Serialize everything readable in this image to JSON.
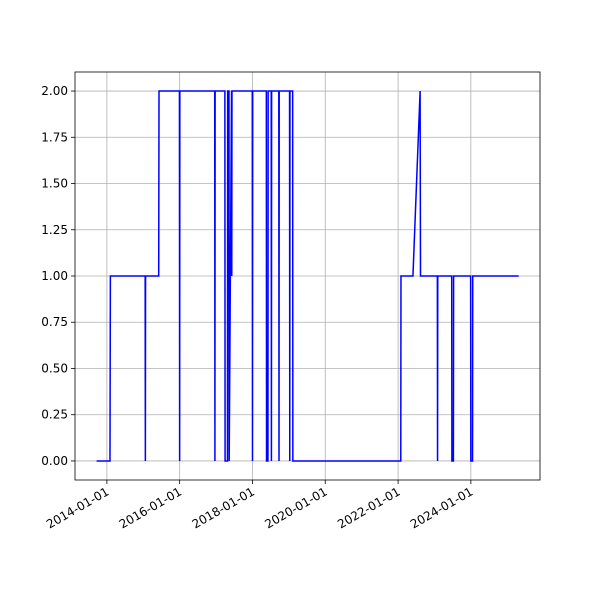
{
  "chart_data": {
    "type": "line",
    "color": "#0000ff",
    "grid": true,
    "x": [
      "2013-09-20",
      "2014-02-01",
      "2014-02-05",
      "2015-01-20",
      "2015-01-22",
      "2015-01-24",
      "2015-06-05",
      "2015-06-08",
      "2015-12-30",
      "2016-01-01",
      "2016-01-03",
      "2016-12-18",
      "2016-12-20",
      "2016-12-22",
      "2017-03-30",
      "2017-04-01",
      "2017-04-25",
      "2017-04-27",
      "2017-05-10",
      "2017-05-12",
      "2017-06-05",
      "2017-06-07",
      "2017-06-09",
      "2017-12-30",
      "2018-01-01",
      "2018-01-03",
      "2018-05-20",
      "2018-05-22",
      "2018-06-05",
      "2018-06-07",
      "2018-07-08",
      "2018-07-10",
      "2018-07-12",
      "2018-09-22",
      "2018-09-24",
      "2018-09-26",
      "2019-01-08",
      "2019-01-10",
      "2019-01-12",
      "2019-02-08",
      "2019-02-10",
      "2022-01-28",
      "2022-01-30",
      "2022-05-30",
      "2022-08-10",
      "2022-08-14",
      "2023-01-30",
      "2023-02-01",
      "2023-02-03",
      "2023-06-23",
      "2023-06-25",
      "2023-07-10",
      "2023-07-12",
      "2023-12-30",
      "2024-01-01",
      "2024-01-18",
      "2024-01-20",
      "2025-04-25"
    ],
    "values": [
      0,
      0,
      1,
      1,
      0,
      1,
      1,
      2,
      2,
      0,
      2,
      2,
      0,
      2,
      2,
      0,
      0,
      2,
      2,
      0,
      2,
      1,
      2,
      2,
      0,
      2,
      2,
      0,
      0,
      2,
      2,
      0,
      2,
      2,
      0,
      2,
      2,
      0,
      2,
      2,
      0,
      0,
      1,
      1,
      2,
      1,
      1,
      0,
      1,
      1,
      0,
      0,
      1,
      1,
      0,
      0,
      1,
      1
    ],
    "xlim": [
      "2013-02-15",
      "2025-11-25"
    ],
    "xticks": [
      "2014-01-01",
      "2016-01-01",
      "2018-01-01",
      "2020-01-01",
      "2022-01-01",
      "2024-01-01"
    ],
    "ylim": [
      -0.103,
      2.103
    ],
    "yticks": [
      {
        "value": 0,
        "label": "0.00"
      },
      {
        "value": 0.25,
        "label": "0.25"
      },
      {
        "value": 0.5,
        "label": "0.50"
      },
      {
        "value": 0.75,
        "label": "0.75"
      },
      {
        "value": 1,
        "label": "1.00"
      },
      {
        "value": 1.25,
        "label": "1.25"
      },
      {
        "value": 1.5,
        "label": "1.50"
      },
      {
        "value": 1.75,
        "label": "1.75"
      },
      {
        "value": 2,
        "label": "2.00"
      }
    ]
  }
}
